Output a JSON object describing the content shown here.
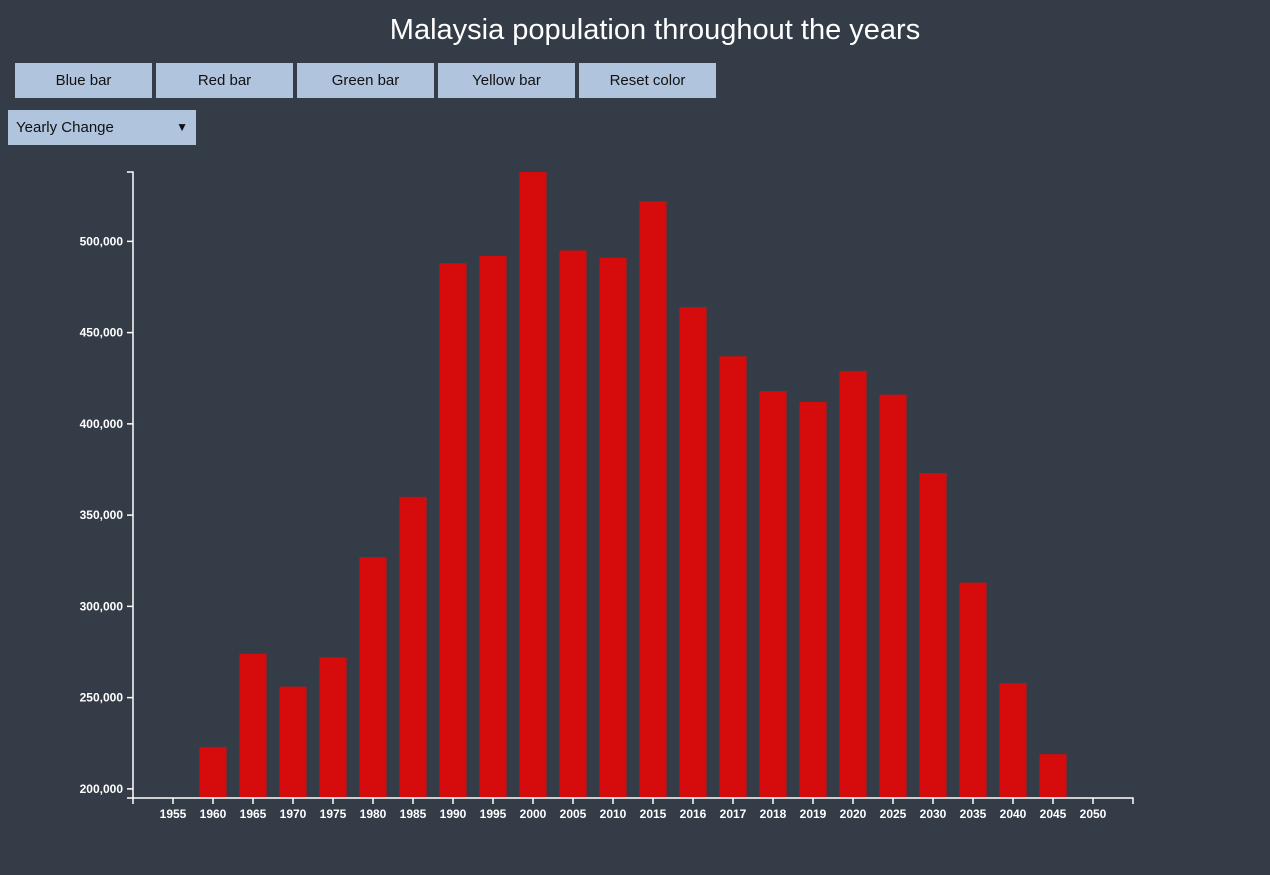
{
  "header": {
    "title": "Malaysia population throughout the years"
  },
  "toolbar": {
    "buttons": [
      {
        "label": "Blue bar"
      },
      {
        "label": "Red bar"
      },
      {
        "label": "Green bar"
      },
      {
        "label": "Yellow bar"
      },
      {
        "label": "Reset color"
      }
    ]
  },
  "metric_select": {
    "selected": "Yearly Change"
  },
  "colors": {
    "background": "#343c47",
    "bar": "#d60b0b",
    "button": "#b0c4de",
    "axis": "#ffffff"
  },
  "chart_data": {
    "type": "bar",
    "title": "Malaysia population throughout the years",
    "xlabel": "",
    "ylabel": "",
    "ylim": [
      195000,
      538000
    ],
    "yticks": [
      200000,
      250000,
      300000,
      350000,
      400000,
      450000,
      500000
    ],
    "ytick_labels": [
      "200,000",
      "250,000",
      "300,000",
      "350,000",
      "400,000",
      "450,000",
      "500,000"
    ],
    "categories": [
      "1955",
      "1960",
      "1965",
      "1970",
      "1975",
      "1980",
      "1985",
      "1990",
      "1995",
      "2000",
      "2005",
      "2010",
      "2015",
      "2016",
      "2017",
      "2018",
      "2019",
      "2020",
      "2025",
      "2030",
      "2035",
      "2040",
      "2045",
      "2050"
    ],
    "values": [
      null,
      223000,
      274000,
      256000,
      272000,
      327000,
      360000,
      488000,
      492000,
      538000,
      495000,
      491000,
      522000,
      464000,
      437000,
      418000,
      412000,
      429000,
      416000,
      373000,
      313000,
      258000,
      219000,
      null
    ],
    "grid": false,
    "legend": "none"
  }
}
